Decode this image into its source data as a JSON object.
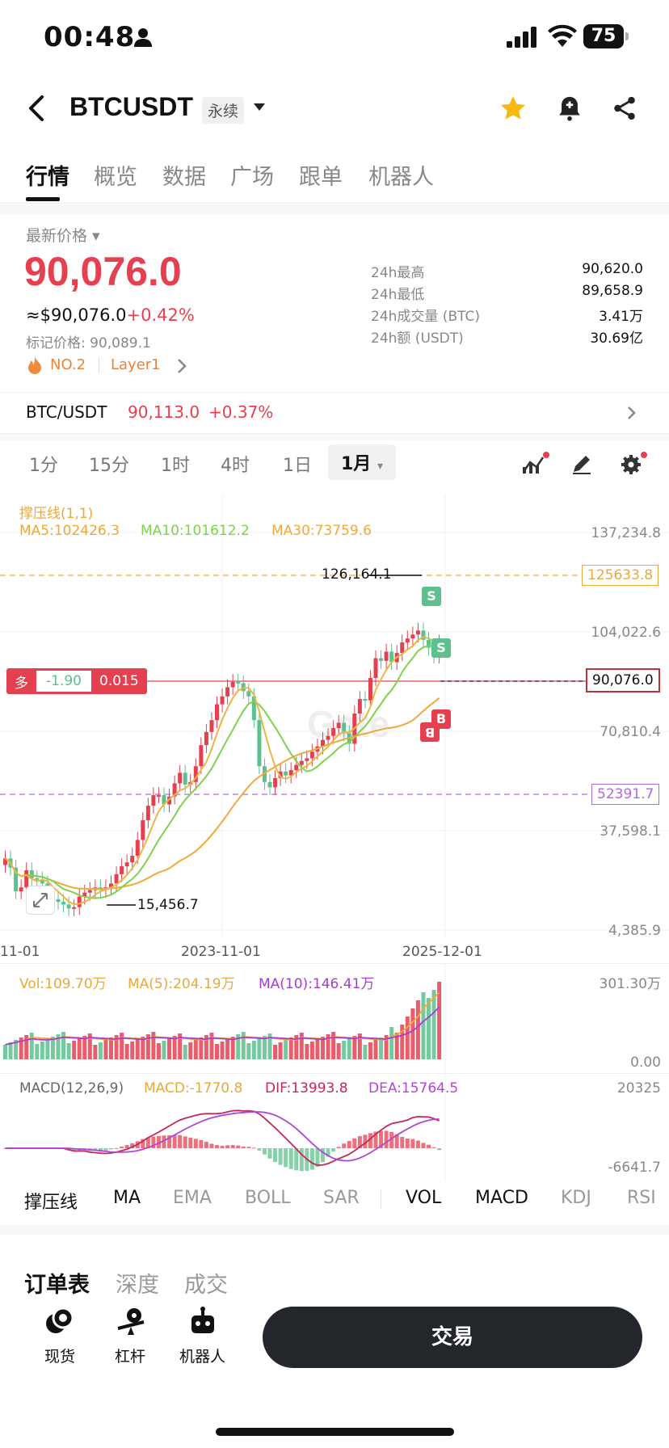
{
  "status": {
    "time": "00:48",
    "battery": "75"
  },
  "header": {
    "symbol": "BTCUSDT",
    "contract_type": "永续"
  },
  "tabs": [
    "行情",
    "概览",
    "数据",
    "广场",
    "跟单",
    "机器人"
  ],
  "price": {
    "label": "最新价格",
    "last": "90,076.0",
    "usd": "≈$90,076.0",
    "change": "+0.42%",
    "mark": "标记价格: 90,089.1",
    "rank": "NO.2",
    "category": "Layer1"
  },
  "stats": [
    {
      "label": "24h最高",
      "value": "90,620.0"
    },
    {
      "label": "24h最低",
      "value": "89,658.9"
    },
    {
      "label": "24h成交量 (BTC)",
      "value": "3.41万"
    },
    {
      "label": "24h额 (USDT)",
      "value": "30.69亿"
    }
  ],
  "spot": {
    "pair": "BTC/USDT",
    "price": "90,113.0",
    "change": "+0.37%"
  },
  "timeframes": [
    "1分",
    "15分",
    "1时",
    "4时",
    "1日",
    "1月"
  ],
  "chart": {
    "indicator": "撑压线(1,1)",
    "ma5": "MA5:102426.3",
    "ma10": "MA10:101612.2",
    "ma30": "MA30:73759.6",
    "y_ticks": [
      "137,234.8",
      "104,022.6",
      "70,810.4",
      "37,598.1",
      "4,385.9"
    ],
    "x_ticks": [
      "11-01",
      "2023-11-01",
      "2025-12-01"
    ],
    "resistance": "125633.8",
    "support": "52391.7",
    "current": "90,076.0",
    "high_label": "126,164.1",
    "low_label": "15,456.7",
    "position": {
      "side": "多",
      "pnl": "-1.90",
      "size": "0.015"
    },
    "markers": [
      "S",
      "S",
      "B",
      "B"
    ],
    "watermark": "Gate"
  },
  "volume": {
    "vol": "Vol:109.70万",
    "ma5": "MA(5):204.19万",
    "ma10": "MA(10):146.41万",
    "top": "301.30万",
    "zero": "0.00"
  },
  "macd": {
    "title": "MACD(12,26,9)",
    "macd": "MACD:-1770.8",
    "dif": "DIF:13993.8",
    "dea": "DEA:15764.5",
    "top": "20325",
    "bottom": "-6641.7"
  },
  "indicators": [
    "撑压线",
    "MA",
    "EMA",
    "BOLL",
    "SAR",
    "VOL",
    "MACD",
    "KDJ",
    "RSI"
  ],
  "order_tabs": [
    "订单表",
    "深度",
    "成交"
  ],
  "bottom": {
    "spot": "现货",
    "leverage": "杠杆",
    "bot": "机器人",
    "trade": "交易"
  },
  "colors": {
    "up": "#e5404f",
    "down": "#5dc08d",
    "accent_orange": "#e8a93a"
  }
}
